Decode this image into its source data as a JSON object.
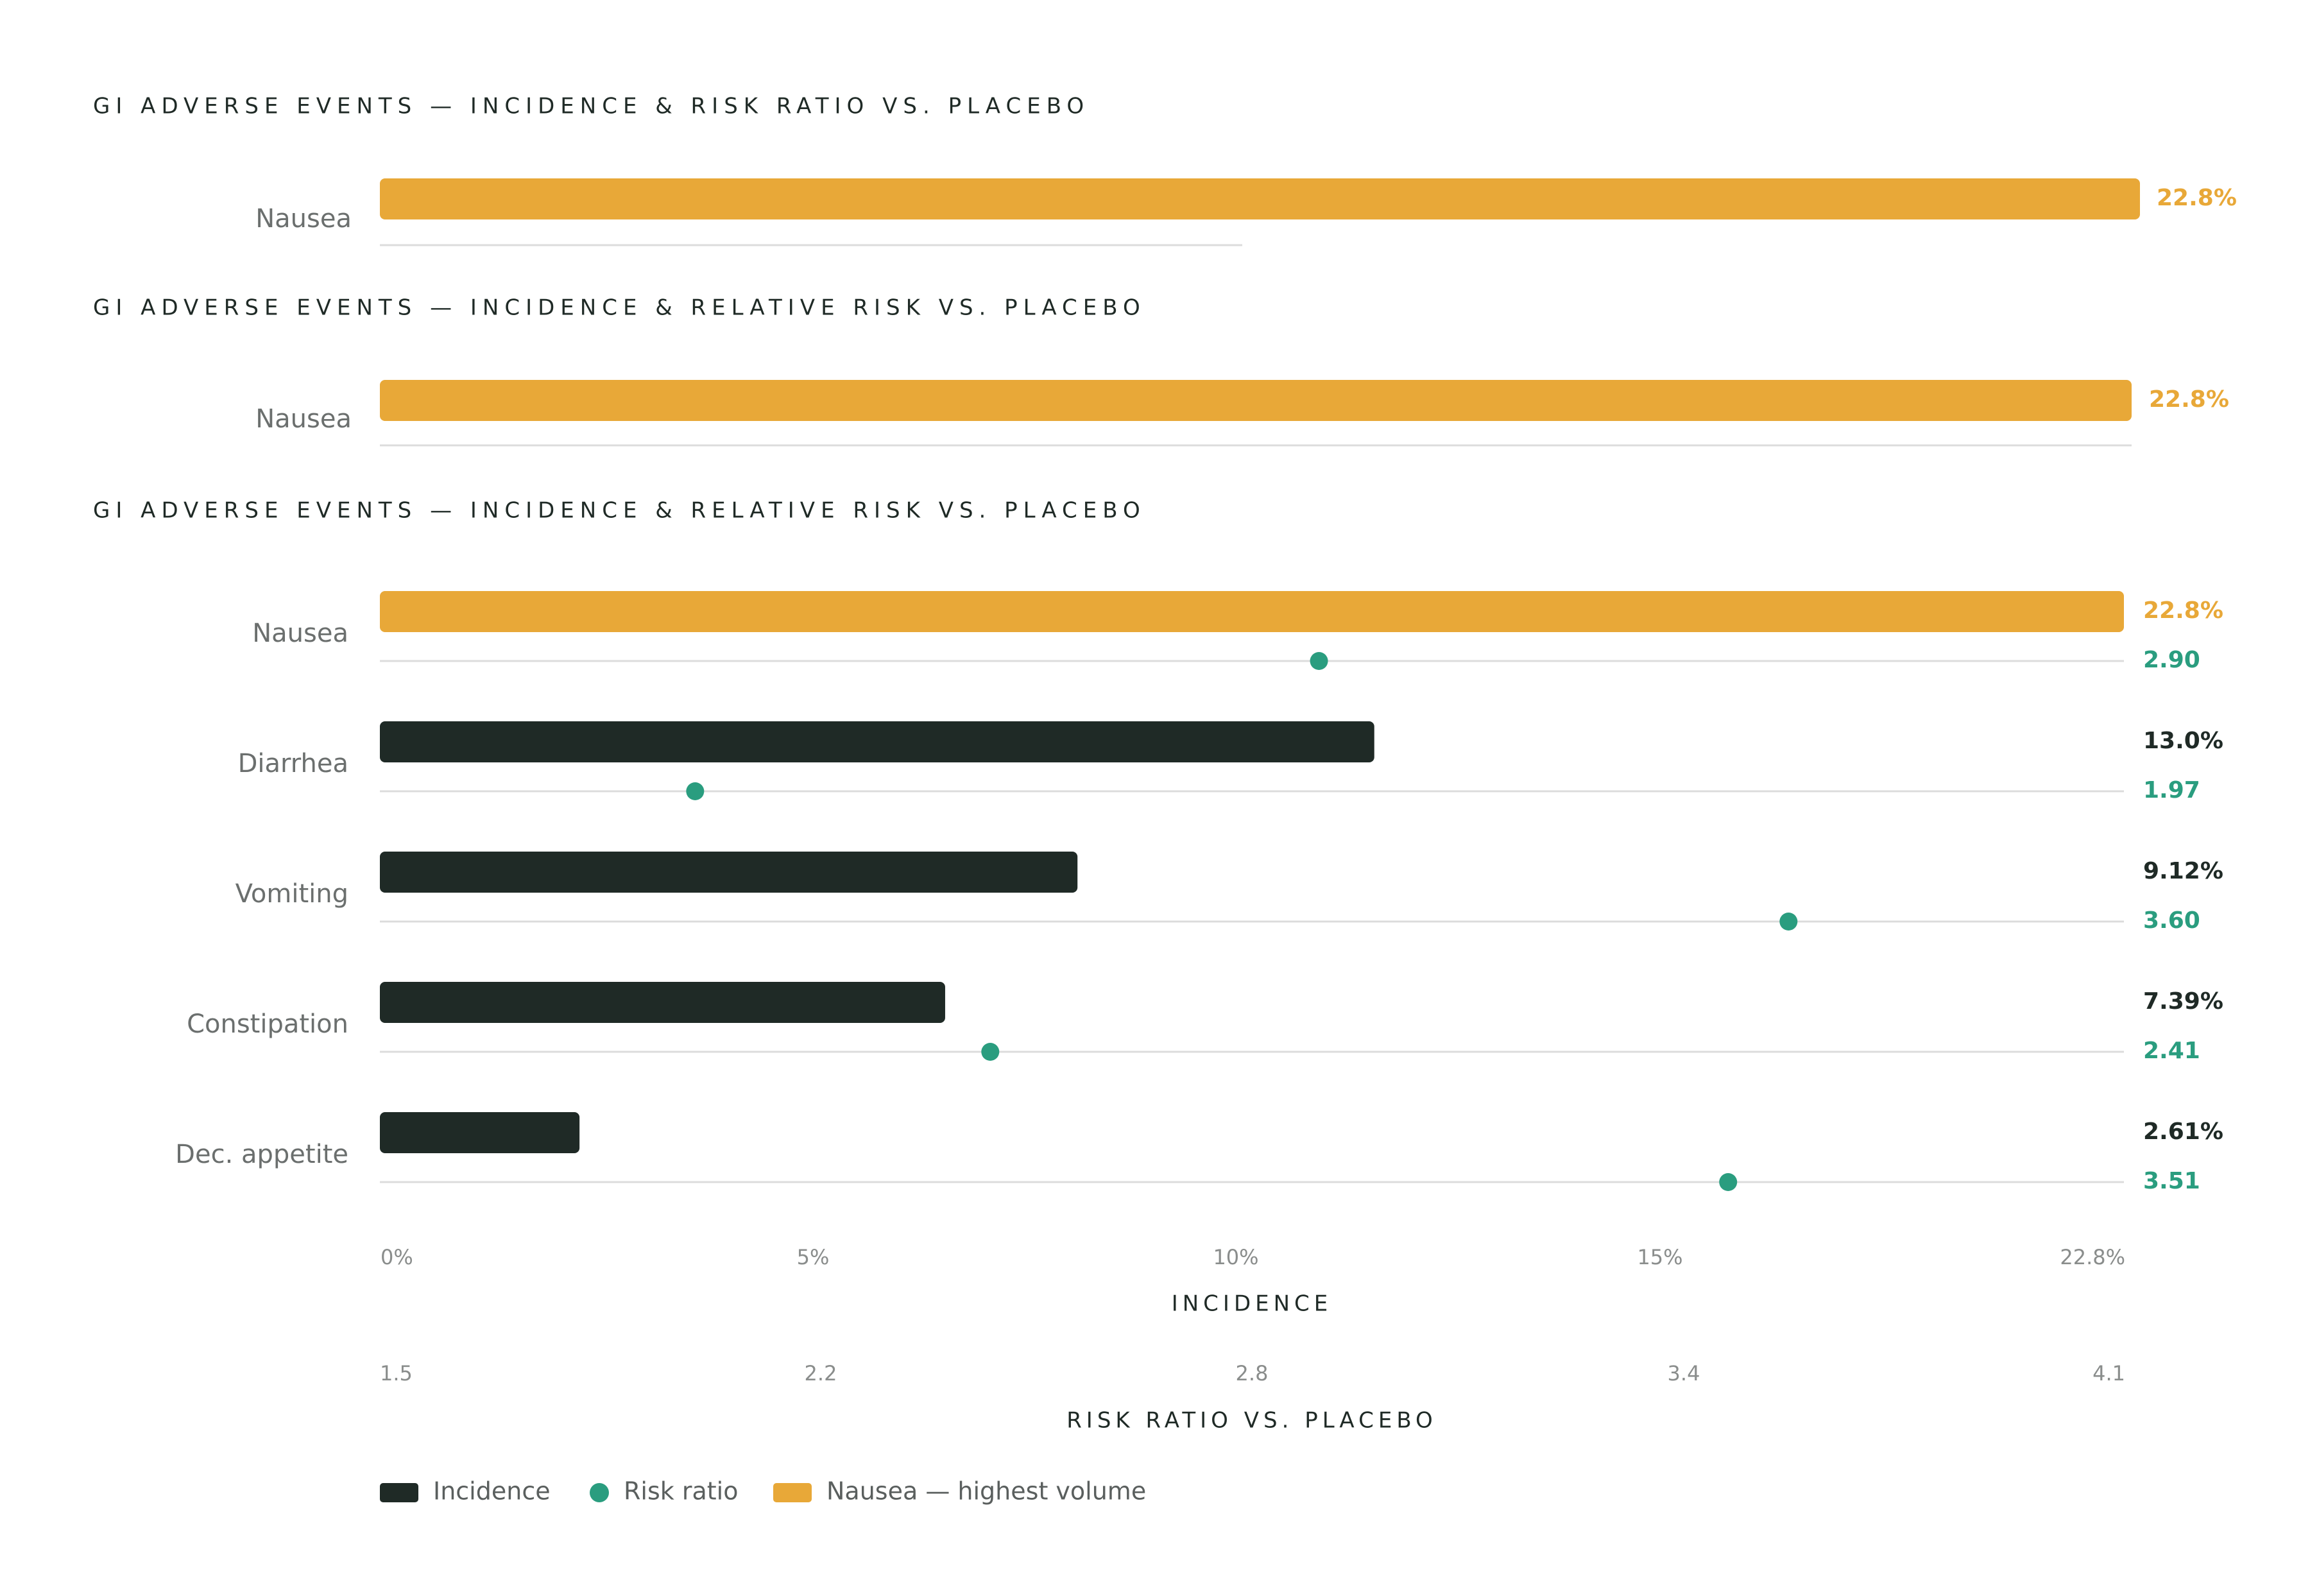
{
  "chart_data": {
    "type": "bar",
    "titles": [
      "GI ADVERSE EVENTS — INCIDENCE & RISK RATIO VS. PLACEBO",
      "GI ADVERSE EVENTS — INCIDENCE & RELATIVE RISK VS. PLACEBO",
      "GI ADVERSE EVENTS — INCIDENCE & RELATIVE RISK VS. PLACEBO"
    ],
    "preview_rows": [
      {
        "category": "Nausea",
        "incidence": 22.8,
        "label": "22.8%"
      },
      {
        "category": "Nausea",
        "incidence": 22.8,
        "label": "22.8%"
      }
    ],
    "categories": [
      "Nausea",
      "Diarrhea",
      "Vomiting",
      "Constipation",
      "Dec. appetite"
    ],
    "series": [
      {
        "name": "Incidence",
        "values": [
          22.8,
          13.0,
          9.12,
          7.39,
          2.61
        ],
        "labels": [
          "22.8%",
          "13.0%",
          "9.12%",
          "7.39%",
          "2.61%"
        ]
      },
      {
        "name": "Risk ratio",
        "values": [
          2.9,
          1.97,
          3.6,
          2.41,
          3.51
        ],
        "labels": [
          "2.90",
          "1.97",
          "3.60",
          "2.41",
          "3.51"
        ]
      }
    ],
    "highlight": {
      "category": "Nausea",
      "label": "Nausea — highest volume"
    },
    "x_incidence": {
      "label": "INCIDENCE",
      "ticks": [
        0,
        5,
        10,
        15,
        22.8
      ],
      "tick_labels": [
        "0%",
        "5%",
        "10%",
        "15%",
        "22.8%"
      ]
    },
    "x_risk": {
      "label": "RISK RATIO VS. PLACEBO",
      "range": [
        1.5,
        4.1
      ],
      "ticks": [
        1.5,
        2.2,
        2.8,
        3.4,
        4.1
      ],
      "tick_labels": [
        "1.5",
        "2.2",
        "2.8",
        "3.4",
        "4.1"
      ]
    },
    "legend": [
      "Incidence",
      "Risk ratio",
      "Nausea — highest volume"
    ],
    "colors": {
      "incidence": "#1f2a26",
      "risk": "#2a9d7f",
      "highlight": "#e8a838",
      "grid": "#dcdcdc"
    }
  }
}
